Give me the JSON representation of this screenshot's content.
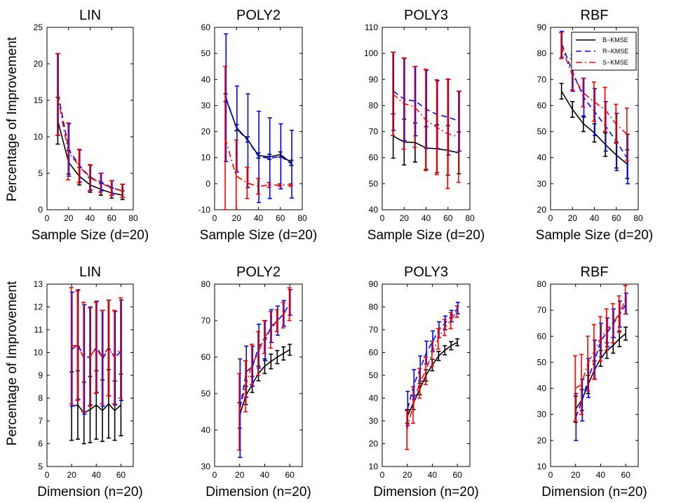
{
  "figure": {
    "ylabel": "Percentage of Improvement",
    "legend": {
      "position": "top-right of last top panel",
      "entries": [
        {
          "name": "B−KMSE",
          "color": "#000000",
          "style": "solid"
        },
        {
          "name": "R−KMSE",
          "color": "#0000ff",
          "style": "dashed"
        },
        {
          "name": "S−KMSE",
          "color": "#ff0000",
          "style": "dashdot"
        }
      ]
    }
  },
  "chart_data": [
    {
      "type": "line",
      "title": "LIN",
      "xlabel": "Sample Size (d=20)",
      "ylabel": "Percentage of Improvement",
      "xlim": [
        0,
        80
      ],
      "ylim": [
        0,
        25
      ],
      "xticks": [
        0,
        20,
        40,
        60,
        80
      ],
      "yticks": [
        0,
        5,
        10,
        15,
        20,
        25
      ],
      "x": [
        10,
        20,
        30,
        40,
        50,
        60,
        70
      ],
      "series": [
        {
          "name": "B−KMSE",
          "values": [
            12.2,
            6.5,
            4.6,
            3.4,
            2.8,
            2.3,
            2.0
          ],
          "err": [
            3.2,
            1.6,
            1.2,
            1.0,
            0.8,
            0.7,
            0.6
          ]
        },
        {
          "name": "R−KMSE",
          "values": [
            15.8,
            8.2,
            6.0,
            4.4,
            3.8,
            3.0,
            2.6
          ],
          "err": [
            5.6,
            3.6,
            2.2,
            1.7,
            1.2,
            1.0,
            0.9
          ]
        },
        {
          "name": "S−KMSE",
          "values": [
            15.8,
            8.0,
            6.0,
            4.4,
            3.7,
            3.0,
            2.6
          ],
          "err": [
            5.6,
            3.9,
            2.3,
            1.8,
            1.3,
            1.0,
            0.9
          ]
        }
      ]
    },
    {
      "type": "line",
      "title": "POLY2",
      "xlabel": "Sample Size (d=20)",
      "ylabel": "",
      "xlim": [
        0,
        80
      ],
      "ylim": [
        -10,
        60
      ],
      "xticks": [
        0,
        20,
        40,
        60,
        80
      ],
      "yticks": [
        -10,
        0,
        10,
        20,
        30,
        40,
        50,
        60
      ],
      "x": [
        10,
        20,
        30,
        40,
        50,
        60,
        70
      ],
      "series": [
        {
          "name": "B−KMSE",
          "values": [
            33.0,
            21.5,
            17.0,
            10.8,
            10.3,
            11.2,
            8.0
          ],
          "err": [
            1.5,
            1.2,
            1.0,
            1.0,
            1.0,
            1.0,
            1.0
          ]
        },
        {
          "name": "R−KMSE",
          "values": [
            33.0,
            21.0,
            16.5,
            10.3,
            9.8,
            10.5,
            7.5
          ],
          "err": [
            24.5,
            16.5,
            18.0,
            17.5,
            15.5,
            12.5,
            13.0
          ]
        },
        {
          "name": "S−KMSE",
          "values": [
            17.5,
            3.0,
            0.3,
            -1.0,
            -0.5,
            -0.5,
            -0.5
          ],
          "err": [
            27.5,
            13.8,
            6.0,
            3.0,
            1.0,
            0.5,
            0.5
          ]
        }
      ]
    },
    {
      "type": "line",
      "title": "POLY3",
      "xlabel": "Sample Size (d=20)",
      "ylabel": "",
      "xlim": [
        0,
        80
      ],
      "ylim": [
        40,
        110
      ],
      "xticks": [
        0,
        20,
        40,
        60,
        80
      ],
      "yticks": [
        40,
        50,
        60,
        70,
        80,
        90,
        100,
        110
      ],
      "x": [
        10,
        20,
        30,
        40,
        50,
        60,
        70
      ],
      "series": [
        {
          "name": "B−KMSE",
          "values": [
            68.3,
            66.0,
            65.8,
            63.7,
            63.4,
            62.8,
            61.8
          ],
          "err": [
            8.5,
            8.8,
            7.5,
            8.2,
            9.2,
            9.5,
            8.0
          ]
        },
        {
          "name": "R−KMSE",
          "values": [
            85.5,
            82.3,
            81.7,
            78.5,
            76.5,
            75.5,
            74.0
          ],
          "err": [
            15.0,
            15.8,
            13.3,
            15.0,
            13.0,
            14.5,
            11.5
          ]
        },
        {
          "name": "S−KMSE",
          "values": [
            84.5,
            80.8,
            79.5,
            74.5,
            71.7,
            69.2,
            68.0
          ],
          "err": [
            16.0,
            17.5,
            15.5,
            19.5,
            18.2,
            21.0,
            17.5
          ]
        }
      ]
    },
    {
      "type": "line",
      "title": "RBF",
      "xlabel": "Sample Size (d=20)",
      "ylabel": "",
      "xlim": [
        0,
        80
      ],
      "ylim": [
        20,
        90
      ],
      "xticks": [
        0,
        20,
        40,
        60,
        80
      ],
      "yticks": [
        20,
        30,
        40,
        50,
        60,
        70,
        80,
        90
      ],
      "x": [
        10,
        20,
        30,
        40,
        50,
        60,
        70
      ],
      "series": [
        {
          "name": "B−KMSE",
          "values": [
            65.5,
            58.5,
            53.0,
            49.5,
            45.0,
            41.0,
            37.5
          ],
          "err": [
            3.0,
            3.0,
            3.0,
            3.5,
            4.5,
            5.0,
            5.5
          ]
        },
        {
          "name": "R−KMSE",
          "values": [
            83.5,
            72.5,
            63.0,
            57.5,
            52.0,
            46.0,
            39.5
          ],
          "err": [
            5.0,
            7.0,
            7.5,
            9.0,
            9.5,
            11.0,
            9.5
          ]
        },
        {
          "name": "S−KMSE",
          "values": [
            83.0,
            72.0,
            65.0,
            61.5,
            58.5,
            53.0,
            49.0
          ],
          "err": [
            5.0,
            6.0,
            5.5,
            7.5,
            8.5,
            7.5,
            10.0
          ]
        }
      ]
    },
    {
      "type": "line",
      "title": "LIN",
      "xlabel": "Dimension (n=20)",
      "ylabel": "Percentage of Improvement",
      "xlim": [
        0,
        70
      ],
      "ylim": [
        5,
        13
      ],
      "xticks": [
        0,
        20,
        40,
        60
      ],
      "yticks": [
        5,
        6,
        7,
        8,
        9,
        10,
        11,
        12,
        13
      ],
      "x": [
        20,
        25,
        30,
        35,
        40,
        45,
        50,
        55,
        60
      ],
      "series": [
        {
          "name": "B−KMSE",
          "values": [
            7.65,
            7.7,
            7.35,
            7.5,
            7.7,
            7.45,
            7.75,
            7.45,
            7.7
          ],
          "err": [
            1.5,
            1.5,
            1.35,
            1.45,
            1.5,
            1.35,
            1.5,
            1.3,
            1.35
          ]
        },
        {
          "name": "R−KMSE",
          "values": [
            10.15,
            10.35,
            9.7,
            9.85,
            10.25,
            9.75,
            10.2,
            9.75,
            10.1
          ],
          "err": [
            2.5,
            2.4,
            2.4,
            2.15,
            2.0,
            2.1,
            2.1,
            2.05,
            2.2
          ]
        },
        {
          "name": "S−KMSE",
          "values": [
            10.3,
            10.3,
            9.8,
            9.8,
            10.2,
            9.8,
            10.2,
            9.8,
            10.2
          ],
          "err": [
            2.55,
            2.4,
            2.4,
            2.15,
            2.0,
            2.05,
            2.1,
            2.05,
            2.2
          ]
        }
      ]
    },
    {
      "type": "line",
      "title": "POLY2",
      "xlabel": "Dimension (n=20)",
      "ylabel": "",
      "xlim": [
        0,
        70
      ],
      "ylim": [
        30,
        80
      ],
      "xticks": [
        0,
        20,
        40,
        60
      ],
      "yticks": [
        30,
        40,
        50,
        60,
        70,
        80
      ],
      "x": [
        20,
        25,
        30,
        35,
        40,
        45,
        50,
        55,
        60
      ],
      "series": [
        {
          "name": "B−KMSE",
          "values": [
            44.0,
            49.5,
            52.5,
            55.5,
            57.5,
            58.8,
            60.0,
            61.0,
            62.0
          ],
          "err": [
            3.5,
            2.5,
            2.2,
            2.0,
            2.0,
            2.0,
            1.8,
            1.8,
            1.5
          ]
        },
        {
          "name": "R−KMSE",
          "values": [
            46.0,
            56.0,
            57.5,
            63.0,
            64.5,
            68.5,
            70.0,
            72.0,
            75.0
          ],
          "err": [
            13.5,
            7.0,
            5.5,
            6.0,
            5.5,
            4.5,
            4.0,
            3.5,
            3.5
          ]
        },
        {
          "name": "S−KMSE",
          "values": [
            45.0,
            52.0,
            58.0,
            61.0,
            65.5,
            67.5,
            70.0,
            71.5,
            74.5
          ],
          "err": [
            10.5,
            7.0,
            5.5,
            6.0,
            4.5,
            5.0,
            3.0,
            3.5,
            4.5
          ]
        }
      ]
    },
    {
      "type": "line",
      "title": "POLY3",
      "xlabel": "Dimension (n=20)",
      "ylabel": "",
      "xlim": [
        0,
        70
      ],
      "ylim": [
        10,
        90
      ],
      "xticks": [
        0,
        20,
        40,
        60
      ],
      "yticks": [
        10,
        20,
        30,
        40,
        50,
        60,
        70,
        80,
        90
      ],
      "x": [
        20,
        25,
        30,
        35,
        40,
        45,
        50,
        55,
        60
      ],
      "series": [
        {
          "name": "B−KMSE",
          "values": [
            32.0,
            38.0,
            44.0,
            50.0,
            54.5,
            58.5,
            61.0,
            63.0,
            64.5
          ],
          "err": [
            3.0,
            3.0,
            2.5,
            2.5,
            2.5,
            2.0,
            2.0,
            1.8,
            1.5
          ]
        },
        {
          "name": "R−KMSE",
          "values": [
            35.5,
            46.0,
            53.0,
            60.0,
            65.0,
            70.0,
            73.0,
            76.0,
            79.5
          ],
          "err": [
            7.5,
            6.5,
            5.5,
            5.0,
            4.5,
            3.5,
            3.0,
            2.5,
            2.5
          ]
        },
        {
          "name": "S−KMSE",
          "values": [
            26.0,
            37.0,
            46.5,
            52.0,
            59.5,
            66.0,
            71.0,
            74.0,
            78.0
          ],
          "err": [
            8.5,
            8.0,
            6.5,
            6.0,
            5.5,
            4.5,
            3.5,
            3.5,
            2.5
          ]
        }
      ]
    },
    {
      "type": "line",
      "title": "RBF",
      "xlabel": "Dimension (n=20)",
      "ylabel": "",
      "xlim": [
        0,
        70
      ],
      "ylim": [
        10,
        80
      ],
      "xticks": [
        0,
        20,
        40,
        60
      ],
      "yticks": [
        10,
        20,
        30,
        40,
        50,
        60,
        70,
        80
      ],
      "x": [
        20,
        25,
        30,
        35,
        40,
        45,
        50,
        55,
        60
      ],
      "series": [
        {
          "name": "B−KMSE",
          "values": [
            32.0,
            35.5,
            41.5,
            47.0,
            51.5,
            54.5,
            56.5,
            59.0,
            61.0
          ],
          "err": [
            5.0,
            4.0,
            3.5,
            3.5,
            3.0,
            3.0,
            3.0,
            3.0,
            2.5
          ]
        },
        {
          "name": "R−KMSE",
          "values": [
            29.0,
            35.5,
            44.0,
            51.0,
            58.5,
            61.5,
            65.0,
            68.5,
            72.5
          ],
          "err": [
            9.0,
            8.0,
            7.5,
            7.5,
            6.5,
            5.5,
            5.5,
            5.0,
            4.0
          ]
        },
        {
          "name": "S−KMSE",
          "values": [
            40.0,
            41.5,
            49.5,
            54.0,
            59.0,
            62.5,
            65.0,
            68.5,
            74.0
          ],
          "err": [
            12.5,
            11.5,
            10.5,
            10.5,
            8.5,
            8.0,
            7.5,
            7.0,
            5.5
          ]
        }
      ]
    }
  ]
}
